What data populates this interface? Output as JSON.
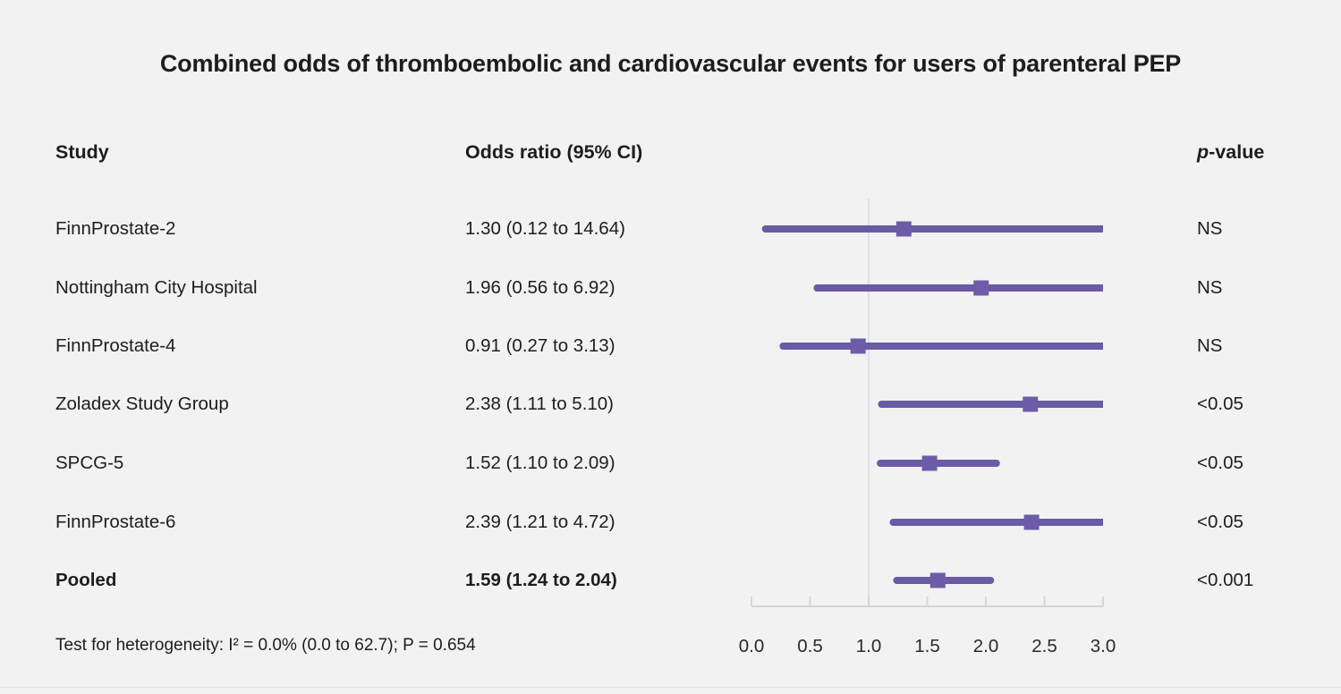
{
  "title": "Combined odds of thromboembolic and cardiovascular events for users of parenteral PEP",
  "columns": {
    "study": "Study",
    "odds_ratio": "Odds ratio (95% CI)",
    "p_prefix": "p",
    "p_suffix": "-value"
  },
  "footnote": "Test for heterogeneity: I² = 0.0% (0.0 to 62.7); P = 0.654",
  "chart_data": {
    "type": "scatter",
    "subtype": "forest-plot",
    "title": "Combined odds of thromboembolic and cardiovascular events for users of parenteral PEP",
    "xlabel": "Odds ratio",
    "ylabel": "Study",
    "rows": [
      {
        "study": "FinnProstate-2",
        "or": 1.3,
        "ci_low": 0.12,
        "ci_high": 14.64,
        "label": "1.30 (0.12 to 14.64)",
        "p": "NS",
        "bold": false
      },
      {
        "study": "Nottingham City Hospital",
        "or": 1.96,
        "ci_low": 0.56,
        "ci_high": 6.92,
        "label": "1.96 (0.56 to 6.92)",
        "p": "NS",
        "bold": false
      },
      {
        "study": "FinnProstate-4",
        "or": 0.91,
        "ci_low": 0.27,
        "ci_high": 3.13,
        "label": "0.91 (0.27 to 3.13)",
        "p": "NS",
        "bold": false
      },
      {
        "study": "Zoladex Study Group",
        "or": 2.38,
        "ci_low": 1.11,
        "ci_high": 5.1,
        "label": "2.38 (1.11 to 5.10)",
        "p": "<0.05",
        "bold": false
      },
      {
        "study": "SPCG-5",
        "or": 1.52,
        "ci_low": 1.1,
        "ci_high": 2.09,
        "label": "1.52 (1.10 to 2.09)",
        "p": "<0.05",
        "bold": false
      },
      {
        "study": "FinnProstate-6",
        "or": 2.39,
        "ci_low": 1.21,
        "ci_high": 4.72,
        "label": "2.39 (1.21 to 4.72)",
        "p": "<0.05",
        "bold": false
      },
      {
        "study": "Pooled",
        "or": 1.59,
        "ci_low": 1.24,
        "ci_high": 2.04,
        "label": "1.59 (1.24 to 2.04)",
        "p": "<0.001",
        "bold": true
      }
    ],
    "axis": {
      "xlim": [
        0.0,
        3.0
      ],
      "ticks": [
        0.0,
        0.5,
        1.0,
        1.5,
        2.0,
        2.5,
        3.0
      ],
      "tick_labels": [
        "0.0",
        "0.5",
        "1.0",
        "1.5",
        "2.0",
        "2.5",
        "3.0"
      ],
      "reference_value": 1.0,
      "grid": false
    },
    "colors": {
      "ci_line": "#6b5aa4",
      "marker": "#6e5caa",
      "axis": "#d3d7dc",
      "reference_line": "#dde0e5",
      "background": "#f2f2f2",
      "text": "#1d1d1d"
    }
  }
}
